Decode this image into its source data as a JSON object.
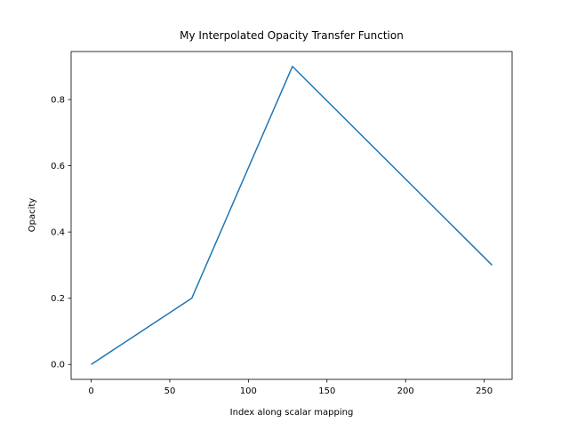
{
  "chart_data": {
    "type": "line",
    "title": "My Interpolated Opacity Transfer Function",
    "xlabel": "Index along scalar mapping",
    "ylabel": "Opacity",
    "x": [
      0,
      64,
      128,
      255
    ],
    "values": [
      0.0,
      0.2,
      0.9,
      0.3
    ],
    "color": "#1f77b4",
    "xlim": [
      -12.75,
      267.75
    ],
    "ylim": [
      -0.045,
      0.945
    ],
    "xticks": [
      0,
      50,
      100,
      150,
      200,
      250
    ],
    "yticks": [
      {
        "value": 0,
        "label": "0.0"
      },
      0.2,
      0.4,
      0.6,
      0.8
    ],
    "grid": false
  }
}
